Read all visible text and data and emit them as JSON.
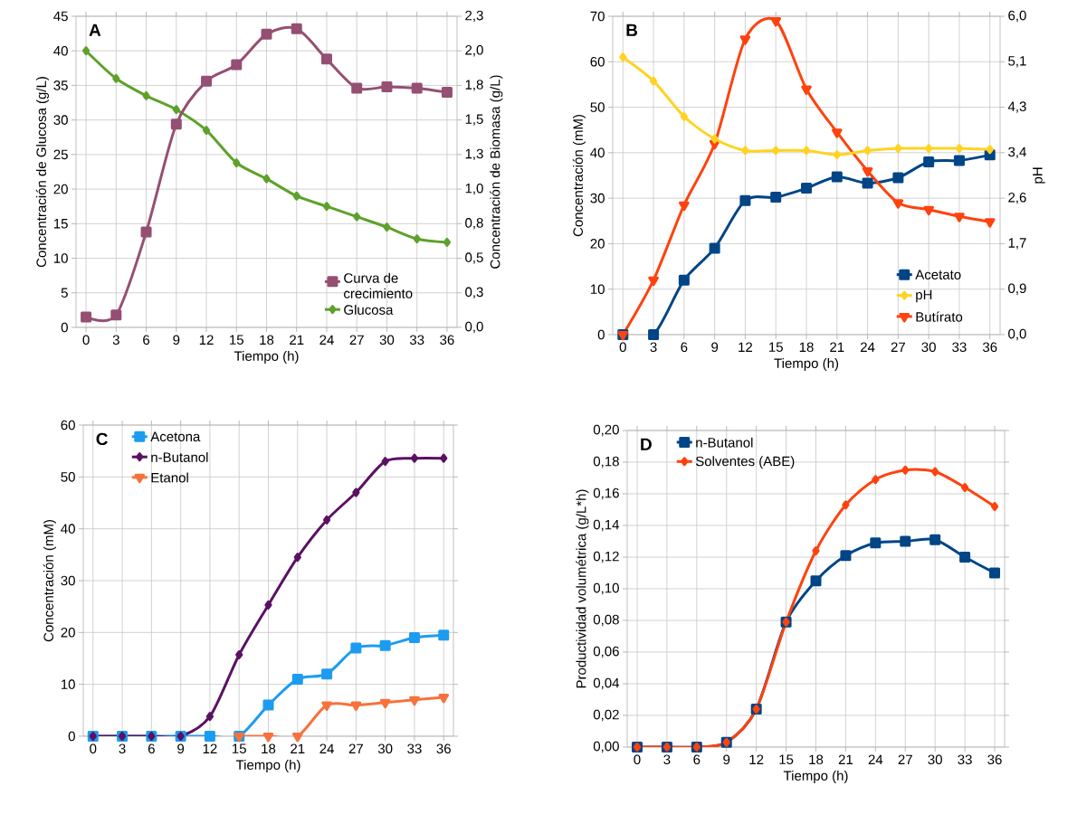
{
  "chart_data": [
    {
      "type": "line",
      "xlabel": "Tiempo (h)",
      "ylabel": "Concentración de Glucosa (g/L)",
      "y2label": "Concentración de Biomasa (g/L)",
      "annotations": [
        "A"
      ],
      "grid": true,
      "legend": "bottom right",
      "x": [
        0,
        3,
        6,
        9,
        12,
        15,
        18,
        21,
        24,
        27,
        30,
        33,
        36
      ],
      "xlim": [
        -1,
        37
      ],
      "xticks": [
        0,
        3,
        6,
        9,
        12,
        15,
        18,
        21,
        24,
        27,
        30,
        33,
        36
      ],
      "ylim": [
        0,
        45
      ],
      "yticks": [
        0,
        5,
        10,
        15,
        20,
        25,
        30,
        35,
        40,
        45
      ],
      "y2lim": [
        0,
        2.25
      ],
      "y2ticks": [
        {
          "value": 0,
          "label": "0,0"
        },
        {
          "value": 0.25,
          "label": "0,3"
        },
        {
          "value": 0.5,
          "label": "0,5"
        },
        {
          "value": 0.75,
          "label": "0,8"
        },
        {
          "value": 1,
          "label": "1,0"
        },
        {
          "value": 1.25,
          "label": "1,3"
        },
        {
          "value": 1.5,
          "label": "1,5"
        },
        {
          "value": 1.75,
          "label": "1,8"
        },
        {
          "value": 2,
          "label": "2,0"
        },
        {
          "value": 2.25,
          "label": "2,3"
        }
      ],
      "series": [
        {
          "name": "Curva de crecimiento",
          "color": "#954f72",
          "axis": "y2",
          "marker": "square",
          "values": [
            0.075,
            0.09,
            0.69,
            1.47,
            1.78,
            1.9,
            2.12,
            2.16,
            1.94,
            1.73,
            1.74,
            1.73,
            1.7
          ]
        },
        {
          "name": "Glucosa",
          "color": "#5ea12b",
          "marker": "diamond",
          "values": [
            40,
            36,
            33.5,
            31.5,
            28.5,
            23.8,
            21.5,
            19,
            17.5,
            16,
            14.5,
            12.8,
            12.3
          ]
        }
      ]
    },
    {
      "type": "line",
      "xlabel": "Tiempo (h)",
      "ylabel": "Concentración (mM)",
      "y2label": "pH",
      "annotations": [
        "B"
      ],
      "grid": true,
      "legend": "bottom right",
      "x": [
        0,
        3,
        6,
        9,
        12,
        15,
        18,
        21,
        24,
        27,
        30,
        33,
        36
      ],
      "xlim": [
        -1,
        37
      ],
      "xticks": [
        0,
        3,
        6,
        9,
        12,
        15,
        18,
        21,
        24,
        27,
        30,
        33,
        36
      ],
      "ylim": [
        0,
        70
      ],
      "yticks": [
        0,
        10,
        20,
        30,
        40,
        50,
        60,
        70
      ],
      "y2lim": [
        0,
        6
      ],
      "y2ticks": [
        {
          "value": 0,
          "label": "0,0"
        },
        {
          "value": 0.857,
          "label": "0,9"
        },
        {
          "value": 1.714,
          "label": "1,7"
        },
        {
          "value": 2.571,
          "label": "2,6"
        },
        {
          "value": 3.429,
          "label": "3,4"
        },
        {
          "value": 4.286,
          "label": "4,3"
        },
        {
          "value": 5.143,
          "label": "5,1"
        },
        {
          "value": 6,
          "label": "6,0"
        }
      ],
      "series": [
        {
          "name": "Acetato",
          "color": "#004586",
          "marker": "square",
          "values": [
            0,
            0,
            12,
            19,
            29.5,
            30.2,
            32.2,
            34.7,
            33.3,
            34.5,
            38,
            38.3,
            39.5
          ]
        },
        {
          "name": "pH",
          "color": "#ffd320",
          "axis": "y2",
          "marker": "diamond",
          "values": [
            5.23,
            4.78,
            4.11,
            3.69,
            3.47,
            3.47,
            3.47,
            3.39,
            3.47,
            3.51,
            3.51,
            3.51,
            3.49
          ]
        },
        {
          "name": "Butírato",
          "color": "#ff420e",
          "marker": "triangle",
          "values": [
            0,
            12,
            28.5,
            42,
            65,
            69,
            54,
            44.5,
            36,
            29,
            27.5,
            26,
            24.8
          ]
        }
      ]
    },
    {
      "type": "line",
      "xlabel": "Tiempo (h)",
      "ylabel": "Concentración (mM)",
      "annotations": [
        "C"
      ],
      "grid": true,
      "legend": "top left",
      "x": [
        0,
        3,
        6,
        9,
        12,
        15,
        18,
        21,
        24,
        27,
        30,
        33,
        36
      ],
      "xlim": [
        -1,
        37
      ],
      "xticks": [
        0,
        3,
        6,
        9,
        12,
        15,
        18,
        21,
        24,
        27,
        30,
        33,
        36
      ],
      "ylim": [
        0,
        60
      ],
      "yticks": [
        0,
        10,
        20,
        30,
        40,
        50,
        60
      ],
      "series": [
        {
          "name": "Acetona",
          "color": "#1c9cf0",
          "marker": "square",
          "values": [
            0,
            0,
            0,
            0,
            0,
            0,
            6,
            11,
            12,
            17,
            17.5,
            19,
            19.5
          ]
        },
        {
          "name": "n-Butanol",
          "color": "#5b1163",
          "marker": "diamond",
          "values": [
            0,
            0,
            0,
            0,
            3.8,
            15.7,
            25.3,
            34.5,
            41.7,
            47,
            53,
            53.6,
            53.6
          ]
        },
        {
          "name": "Etanol",
          "color": "#f7723c",
          "marker": "triangle",
          "values": [
            null,
            null,
            null,
            null,
            null,
            0,
            0,
            0,
            6,
            6,
            6.5,
            7,
            7.5
          ]
        }
      ]
    },
    {
      "type": "line",
      "xlabel": "Tiempo (h)",
      "ylabel": "Productividad volumétrica (g/L*h)",
      "annotations": [
        "D"
      ],
      "grid": true,
      "legend": "top left",
      "x": [
        0,
        3,
        6,
        9,
        12,
        15,
        18,
        21,
        24,
        27,
        30,
        33,
        36
      ],
      "xlim": [
        -1,
        37
      ],
      "xticks": [
        0,
        3,
        6,
        9,
        12,
        15,
        18,
        21,
        24,
        27,
        30,
        33,
        36
      ],
      "ylim": [
        0,
        0.2
      ],
      "yticks": [
        {
          "value": 0,
          "label": "0,00"
        },
        {
          "value": 0.02,
          "label": "0,02"
        },
        {
          "value": 0.04,
          "label": "0,04"
        },
        {
          "value": 0.06,
          "label": "0,06"
        },
        {
          "value": 0.08,
          "label": "0,08"
        },
        {
          "value": 0.1,
          "label": "0,10"
        },
        {
          "value": 0.12,
          "label": "0,12"
        },
        {
          "value": 0.14,
          "label": "0,14"
        },
        {
          "value": 0.16,
          "label": "0,16"
        },
        {
          "value": 0.18,
          "label": "0,18"
        },
        {
          "value": 0.2,
          "label": "0,20"
        }
      ],
      "series": [
        {
          "name": "n-Butanol",
          "color": "#004586",
          "marker": "square",
          "values": [
            0,
            0,
            0,
            0.003,
            0.024,
            0.079,
            0.105,
            0.121,
            0.129,
            0.13,
            0.131,
            0.12,
            0.11
          ]
        },
        {
          "name": "Solventes (ABE)",
          "color": "#ff420e",
          "marker": "diamond",
          "values": [
            0,
            0,
            0,
            0.003,
            0.024,
            0.079,
            0.124,
            0.153,
            0.169,
            0.175,
            0.174,
            0.164,
            0.152
          ]
        }
      ]
    }
  ]
}
